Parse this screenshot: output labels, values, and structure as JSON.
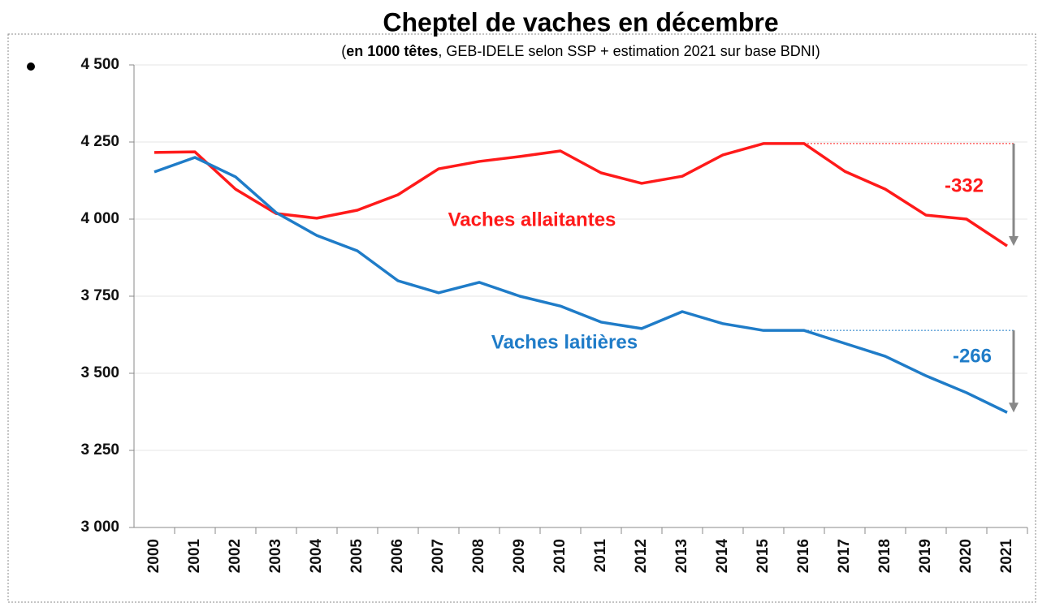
{
  "chart_data": {
    "type": "line",
    "title": "Cheptel de vaches en décembre",
    "subtitle": [
      "(",
      "en 1000 têtes",
      ", GEB-IDELE selon SSP + estimation 2021 sur base BDNI)"
    ],
    "categories": [
      "2000",
      "2001",
      "2002",
      "2003",
      "2004",
      "2005",
      "2006",
      "2007",
      "2008",
      "2009",
      "2010",
      "2011",
      "2012",
      "2013",
      "2014",
      "2015",
      "2016",
      "2017",
      "2018",
      "2019",
      "2020",
      "2021"
    ],
    "series": [
      {
        "name": "Vaches allaitantes",
        "color": "#ff1a1a",
        "values": [
          4216,
          4218,
          4097,
          4018,
          4003,
          4029,
          4079,
          4163,
          4187,
          4203,
          4221,
          4150,
          4116,
          4139,
          4208,
          4245,
          4245,
          4155,
          4097,
          4013,
          4000,
          3913
        ]
      },
      {
        "name": "Vaches laitières",
        "color": "#1f7cc8",
        "values": [
          4153,
          4200,
          4137,
          4021,
          3947,
          3897,
          3800,
          3761,
          3795,
          3750,
          3718,
          3666,
          3645,
          3700,
          3661,
          3639,
          3639,
          3597,
          3555,
          3492,
          3437,
          3373
        ]
      }
    ],
    "annotations": [
      "-332",
      "-266"
    ],
    "ylim": [
      3000,
      4500
    ],
    "yticks": [
      {
        "value": 3000,
        "label": "3 000"
      },
      {
        "value": 3250,
        "label": "3 250"
      },
      {
        "value": 3500,
        "label": "3 500"
      },
      {
        "value": 3750,
        "label": "3 750"
      },
      {
        "value": 4000,
        "label": "4 000"
      },
      {
        "value": 4250,
        "label": "4 250"
      },
      {
        "value": 4500,
        "label": "4 500"
      }
    ],
    "grid": true
  }
}
